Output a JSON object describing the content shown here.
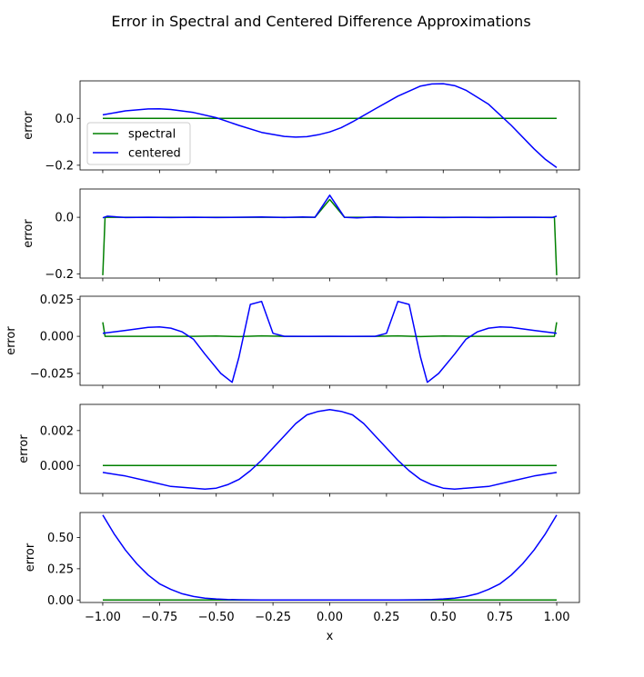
{
  "figure": {
    "suptitle": "Error in Spectral and Centered Difference Approximations"
  },
  "chart_data": [
    {
      "type": "line",
      "ylabel": "error",
      "xlabel": "",
      "xlim": [
        -1.1,
        1.1
      ],
      "ylim": [
        -0.22,
        0.16
      ],
      "yticks": [
        {
          "value": 0.0,
          "label": "0.0"
        },
        {
          "value": -0.2,
          "label": "−0.2"
        }
      ],
      "legend": {
        "position": "lower-left",
        "entries": [
          "spectral",
          "centered"
        ]
      },
      "series": [
        {
          "name": "spectral",
          "color": "#008000",
          "x": [
            -1.0,
            1.0
          ],
          "y": [
            0.0,
            0.0
          ]
        },
        {
          "name": "centered",
          "color": "#0000ff",
          "x": [
            -1.0,
            -0.9,
            -0.8,
            -0.75,
            -0.7,
            -0.6,
            -0.5,
            -0.4,
            -0.3,
            -0.2,
            -0.15,
            -0.1,
            -0.05,
            0.0,
            0.05,
            0.1,
            0.2,
            0.3,
            0.4,
            0.45,
            0.5,
            0.55,
            0.6,
            0.7,
            0.8,
            0.9,
            0.95,
            1.0
          ],
          "y": [
            0.015,
            0.032,
            0.04,
            0.041,
            0.038,
            0.025,
            0.003,
            -0.03,
            -0.06,
            -0.077,
            -0.08,
            -0.078,
            -0.07,
            -0.058,
            -0.04,
            -0.015,
            0.04,
            0.095,
            0.138,
            0.147,
            0.148,
            0.14,
            0.12,
            0.06,
            -0.03,
            -0.13,
            -0.175,
            -0.21
          ]
        }
      ]
    },
    {
      "type": "line",
      "ylabel": "error",
      "xlabel": "",
      "xlim": [
        -1.1,
        1.1
      ],
      "ylim": [
        -0.215,
        0.1
      ],
      "yticks": [
        {
          "value": 0.0,
          "label": "0.0"
        },
        {
          "value": -0.2,
          "label": "−0.2"
        }
      ],
      "series": [
        {
          "name": "spectral",
          "color": "#008000",
          "x": [
            -1.0,
            -0.99,
            -0.95,
            -0.065,
            0.0,
            0.065,
            0.95,
            0.99,
            1.0
          ],
          "y": [
            -0.205,
            0.0,
            0.0,
            0.0,
            0.063,
            0.0,
            0.0,
            0.0,
            -0.205
          ]
        },
        {
          "name": "centered",
          "color": "#0000ff",
          "x": [
            -1.0,
            -0.98,
            -0.9,
            -0.8,
            -0.7,
            -0.6,
            -0.5,
            -0.4,
            -0.3,
            -0.2,
            -0.12,
            -0.065,
            0.0,
            0.065,
            0.12,
            0.2,
            0.3,
            0.4,
            0.5,
            0.6,
            0.7,
            0.8,
            0.9,
            0.98,
            1.0
          ],
          "y": [
            -0.002,
            0.004,
            -0.001,
            0.0,
            -0.001,
            0.0,
            -0.001,
            0.0,
            0.001,
            -0.001,
            0.001,
            0.0,
            0.078,
            0.0,
            -0.002,
            0.001,
            -0.001,
            0.0,
            -0.001,
            0.0,
            -0.001,
            0.0,
            0.0,
            -0.001,
            0.004
          ]
        }
      ]
    },
    {
      "type": "line",
      "ylabel": "error",
      "xlabel": "",
      "xlim": [
        -1.1,
        1.1
      ],
      "ylim": [
        -0.033,
        0.027
      ],
      "yticks": [
        {
          "value": 0.025,
          "label": "0.025"
        },
        {
          "value": 0.0,
          "label": "0.000"
        },
        {
          "value": -0.025,
          "label": "−0.025"
        }
      ],
      "series": [
        {
          "name": "spectral",
          "color": "#008000",
          "x": [
            -1.0,
            -0.99,
            -0.9,
            -0.6,
            -0.5,
            -0.4,
            -0.3,
            -0.2,
            -0.1,
            0.0,
            0.1,
            0.2,
            0.3,
            0.4,
            0.5,
            0.6,
            0.9,
            0.99,
            1.0
          ],
          "y": [
            0.0095,
            0.0,
            0.0,
            0.0,
            0.0002,
            -0.0002,
            0.0003,
            0.0,
            -0.0001,
            0.0,
            -0.0001,
            0.0,
            0.0003,
            -0.0002,
            0.0002,
            0.0,
            0.0,
            0.0,
            0.0095
          ]
        },
        {
          "name": "centered",
          "color": "#0000ff",
          "x": [
            -1.0,
            -0.9,
            -0.8,
            -0.75,
            -0.7,
            -0.65,
            -0.6,
            -0.55,
            -0.48,
            -0.43,
            -0.4,
            -0.35,
            -0.3,
            -0.25,
            -0.2,
            -0.1,
            0.0,
            0.1,
            0.2,
            0.25,
            0.3,
            0.35,
            0.4,
            0.43,
            0.48,
            0.55,
            0.6,
            0.65,
            0.7,
            0.75,
            0.8,
            0.9,
            1.0
          ],
          "y": [
            0.002,
            0.004,
            0.006,
            0.0063,
            0.0055,
            0.003,
            -0.002,
            -0.012,
            -0.025,
            -0.031,
            -0.014,
            0.0215,
            0.0235,
            0.002,
            0.0,
            0.0,
            0.0,
            0.0,
            0.0,
            0.002,
            0.0235,
            0.0215,
            -0.014,
            -0.031,
            -0.025,
            -0.012,
            -0.002,
            0.003,
            0.0055,
            0.0063,
            0.006,
            0.004,
            0.002
          ]
        }
      ]
    },
    {
      "type": "line",
      "ylabel": "error",
      "xlabel": "",
      "xlim": [
        -1.1,
        1.1
      ],
      "ylim": [
        -0.0016,
        0.0035
      ],
      "yticks": [
        {
          "value": 0.002,
          "label": "0.002"
        },
        {
          "value": 0.0,
          "label": "0.000"
        }
      ],
      "series": [
        {
          "name": "spectral",
          "color": "#008000",
          "x": [
            -1.0,
            1.0
          ],
          "y": [
            0.0,
            0.0
          ]
        },
        {
          "name": "centered",
          "color": "#0000ff",
          "x": [
            -1.0,
            -0.9,
            -0.8,
            -0.7,
            -0.6,
            -0.55,
            -0.5,
            -0.45,
            -0.4,
            -0.35,
            -0.3,
            -0.25,
            -0.2,
            -0.15,
            -0.1,
            -0.05,
            0.0,
            0.05,
            0.1,
            0.15,
            0.2,
            0.25,
            0.3,
            0.35,
            0.4,
            0.45,
            0.5,
            0.55,
            0.6,
            0.7,
            0.8,
            0.9,
            1.0
          ],
          "y": [
            -0.0004,
            -0.0006,
            -0.0009,
            -0.0012,
            -0.0013,
            -0.00135,
            -0.0013,
            -0.0011,
            -0.0008,
            -0.0003,
            0.0003,
            0.001,
            0.0017,
            0.0024,
            0.0029,
            0.0031,
            0.0032,
            0.0031,
            0.0029,
            0.0024,
            0.0017,
            0.001,
            0.0003,
            -0.0003,
            -0.0008,
            -0.0011,
            -0.0013,
            -0.00135,
            -0.0013,
            -0.0012,
            -0.0009,
            -0.0006,
            -0.0004
          ]
        }
      ]
    },
    {
      "type": "line",
      "ylabel": "error",
      "xlabel": "x",
      "xlim": [
        -1.1,
        1.1
      ],
      "ylim": [
        -0.02,
        0.7
      ],
      "yticks": [
        {
          "value": 0.5,
          "label": "0.50"
        },
        {
          "value": 0.25,
          "label": "0.25"
        },
        {
          "value": 0.0,
          "label": "0.00"
        }
      ],
      "xticks": [
        {
          "value": -1.0,
          "label": "−1.00"
        },
        {
          "value": -0.75,
          "label": "−0.75"
        },
        {
          "value": -0.5,
          "label": "−0.50"
        },
        {
          "value": -0.25,
          "label": "−0.25"
        },
        {
          "value": 0.0,
          "label": "0.00"
        },
        {
          "value": 0.25,
          "label": "0.25"
        },
        {
          "value": 0.5,
          "label": "0.50"
        },
        {
          "value": 0.75,
          "label": "0.75"
        },
        {
          "value": 1.0,
          "label": "1.00"
        }
      ],
      "series": [
        {
          "name": "spectral",
          "color": "#008000",
          "x": [
            -1.0,
            1.0
          ],
          "y": [
            0.0,
            0.0
          ]
        },
        {
          "name": "centered",
          "color": "#0000ff",
          "x": [
            -1.0,
            -0.95,
            -0.9,
            -0.85,
            -0.8,
            -0.75,
            -0.7,
            -0.65,
            -0.6,
            -0.55,
            -0.5,
            -0.45,
            -0.4,
            -0.3,
            -0.2,
            0.0,
            0.2,
            0.3,
            0.4,
            0.45,
            0.5,
            0.55,
            0.6,
            0.65,
            0.7,
            0.75,
            0.8,
            0.85,
            0.9,
            0.95,
            1.0
          ],
          "y": [
            0.68,
            0.53,
            0.4,
            0.29,
            0.2,
            0.13,
            0.085,
            0.05,
            0.028,
            0.015,
            0.008,
            0.004,
            0.002,
            0.0,
            0.0,
            0.0,
            0.0,
            0.0,
            0.002,
            0.004,
            0.008,
            0.015,
            0.028,
            0.05,
            0.085,
            0.13,
            0.2,
            0.29,
            0.4,
            0.53,
            0.68
          ]
        }
      ]
    }
  ]
}
